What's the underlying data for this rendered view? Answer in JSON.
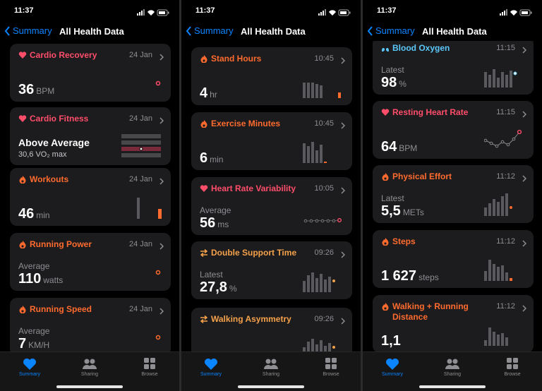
{
  "screens": [
    {
      "status": {
        "time": "11:37"
      },
      "nav": {
        "back": "Summary",
        "title": "All Health Data"
      },
      "cards": [
        {
          "title": "Cardio Recovery",
          "time": "24 Jan",
          "value": "36",
          "unit": "BPM"
        },
        {
          "title": "Cardio Fitness",
          "time": "24 Jan",
          "value": "Above Average",
          "detail": "30,6 VO₂ max"
        },
        {
          "title": "Workouts",
          "time": "24 Jan",
          "value": "46",
          "unit": "min"
        },
        {
          "title": "Running Power",
          "time": "24 Jan",
          "label": "Average",
          "value": "110",
          "unit": "watts"
        },
        {
          "title": "Running Speed",
          "time": "24 Jan",
          "label": "Average",
          "value": "7",
          "unit": "KM/H"
        }
      ],
      "tab_bar": {
        "tabs": [
          "Summary",
          "Sharing",
          "Browse"
        ]
      }
    },
    {
      "status": {
        "time": "11:37"
      },
      "nav": {
        "back": "Summary",
        "title": "All Health Data"
      },
      "cards": [
        {
          "title": "Stand Hours",
          "time": "10:45",
          "value": "4",
          "unit": "hr"
        },
        {
          "title": "Exercise Minutes",
          "time": "10:45",
          "value": "6",
          "unit": "min"
        },
        {
          "title": "Heart Rate Variability",
          "time": "10:05",
          "label": "Average",
          "value": "56",
          "unit": "ms"
        },
        {
          "title": "Double Support Time",
          "time": "09:26",
          "label": "Latest",
          "value": "27,8",
          "unit": "%"
        },
        {
          "title": "Walking Asymmetry",
          "time": "09:26"
        }
      ],
      "tab_bar": {
        "tabs": [
          "Summary",
          "Sharing",
          "Browse"
        ]
      }
    },
    {
      "status": {
        "time": "11:37"
      },
      "nav": {
        "back": "Summary",
        "title": "All Health Data"
      },
      "cards": [
        {
          "title": "Blood Oxygen",
          "time": "11:15",
          "label": "Latest",
          "value": "98",
          "unit": "%"
        },
        {
          "title": "Resting Heart Rate",
          "time": "11:15",
          "value": "64",
          "unit": "BPM"
        },
        {
          "title": "Physical Effort",
          "time": "11:12",
          "label": "Latest",
          "value": "5,5",
          "unit": "METs"
        },
        {
          "title": "Steps",
          "time": "11:12",
          "value": "1 627",
          "unit": "steps"
        },
        {
          "title": "Walking + Running Distance",
          "time": "11:12",
          "value": "1,1"
        }
      ],
      "tab_bar": {
        "tabs": [
          "Summary",
          "Sharing",
          "Browse"
        ]
      }
    }
  ]
}
